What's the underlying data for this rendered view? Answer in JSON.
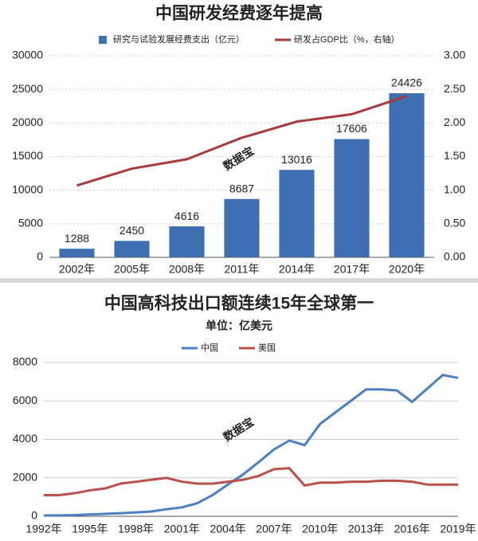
{
  "chart_data": [
    {
      "type": "bar",
      "title": "中国研发经费逐年提高",
      "watermark": "数据宝",
      "categories": [
        "2002年",
        "2005年",
        "2008年",
        "2011年",
        "2014年",
        "2017年",
        "2020年"
      ],
      "series": [
        {
          "name": "研究与试验发展经费支出（亿元）",
          "color": "#3f6fb0",
          "values": [
            1288,
            2450,
            4616,
            8687,
            13016,
            17606,
            24426
          ]
        },
        {
          "name": "研发占GDP比（%，右轴）",
          "color": "#a83a3a",
          "type": "line",
          "axis": "y2",
          "values": [
            1.07,
            1.32,
            1.46,
            1.78,
            2.02,
            2.13,
            2.4
          ]
        }
      ],
      "ylim": [
        0,
        30000
      ],
      "yticks": [
        0,
        5000,
        10000,
        15000,
        20000,
        25000,
        30000
      ],
      "y2lim": [
        0,
        3
      ],
      "y2ticks": [
        {
          "value": 0,
          "label": "0.00"
        },
        {
          "value": 0.5,
          "label": "0.50"
        },
        {
          "value": 1,
          "label": "1.00"
        },
        {
          "value": 1.5,
          "label": "1.50"
        },
        {
          "value": 2,
          "label": "2.00"
        },
        {
          "value": 2.5,
          "label": "2.50"
        },
        {
          "value": 3,
          "label": "3.00"
        }
      ],
      "grid": true
    },
    {
      "type": "line",
      "title": "中国高科技出口额连续15年全球第一",
      "subtitle": "单位：亿美元",
      "watermark": "数据宝",
      "x": [
        1992,
        1993,
        1994,
        1995,
        1996,
        1997,
        1998,
        1999,
        2000,
        2001,
        2002,
        2003,
        2004,
        2005,
        2006,
        2007,
        2008,
        2009,
        2010,
        2011,
        2012,
        2013,
        2014,
        2015,
        2016,
        2017,
        2018,
        2019
      ],
      "series": [
        {
          "name": "中国",
          "color": "#4a7fc1",
          "values": [
            40,
            46,
            64,
            101,
            127,
            163,
            202,
            247,
            370,
            464,
            679,
            1103,
            1654,
            2182,
            2815,
            3478,
            3938,
            3700,
            4800,
            5400,
            6000,
            6600,
            6600,
            6550,
            5950,
            6650,
            7350,
            7200
          ]
        },
        {
          "name": "美国",
          "color": "#b9504b",
          "values": [
            1100,
            1100,
            1200,
            1350,
            1450,
            1700,
            1800,
            1900,
            2000,
            1800,
            1700,
            1700,
            1800,
            1900,
            2100,
            2450,
            2500,
            1600,
            1750,
            1750,
            1800,
            1800,
            1850,
            1850,
            1800,
            1650,
            1650,
            1650
          ]
        }
      ],
      "xlim": [
        1992,
        2019
      ],
      "xticks": [
        {
          "value": 1992,
          "label": "1992年"
        },
        {
          "value": 1995,
          "label": "1995年"
        },
        {
          "value": 1998,
          "label": "1998年"
        },
        {
          "value": 2001,
          "label": "2001年"
        },
        {
          "value": 2004,
          "label": "2004年"
        },
        {
          "value": 2007,
          "label": "2007年"
        },
        {
          "value": 2010,
          "label": "2010年"
        },
        {
          "value": 2013,
          "label": "2013年"
        },
        {
          "value": 2016,
          "label": "2016年"
        },
        {
          "value": 2019,
          "label": "2019年"
        }
      ],
      "ylim": [
        0,
        8000
      ],
      "yticks": [
        0,
        2000,
        4000,
        6000,
        8000
      ],
      "grid": true
    }
  ]
}
